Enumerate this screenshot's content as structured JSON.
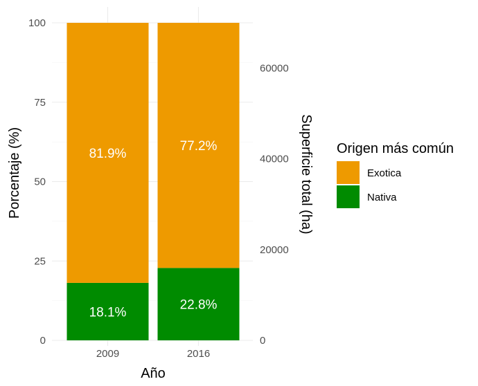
{
  "chart_data": {
    "type": "bar",
    "stacked": true,
    "categories": [
      "2009",
      "2016"
    ],
    "series": [
      {
        "name": "Nativa",
        "values": [
          18.1,
          22.8
        ],
        "labels": [
          "18.1%",
          "22.8%"
        ],
        "color": "#008B00"
      },
      {
        "name": "Exotica",
        "values": [
          81.9,
          77.2
        ],
        "labels": [
          "81.9%",
          "77.2%"
        ],
        "color": "#EE9A00"
      }
    ],
    "xlabel": "Año",
    "ylabel": "Porcentaje (%)",
    "ylabel_secondary": "Superficie total (ha)",
    "ylim": [
      0,
      100
    ],
    "yticks": [
      "0",
      "25",
      "50",
      "75",
      "100"
    ],
    "ylim_secondary": [
      0,
      70000
    ],
    "yticks_secondary": [
      "0",
      "20000",
      "40000",
      "60000"
    ],
    "legend_title": "Origen más común",
    "legend_position": "right",
    "grid": true
  }
}
